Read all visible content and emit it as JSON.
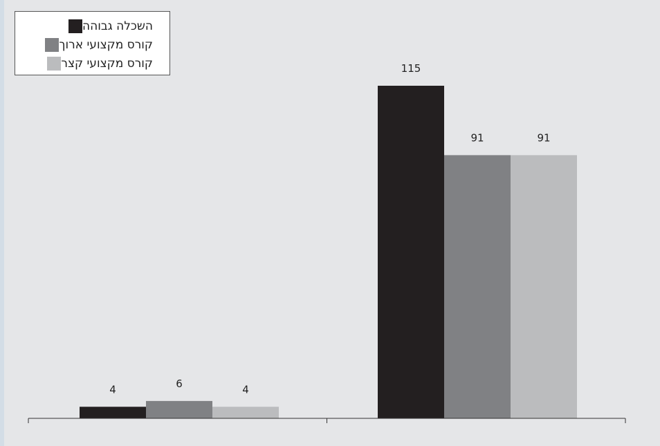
{
  "chart_data": {
    "type": "bar",
    "categories": [
      "",
      ""
    ],
    "series": [
      {
        "name": "השכלה גבוהה",
        "values": [
          4,
          115
        ],
        "color": "#231f20"
      },
      {
        "name": "קורס מקצועי ארוך",
        "values": [
          6,
          91
        ],
        "color": "#808184"
      },
      {
        "name": "קורס מקצועי קצר",
        "values": [
          4,
          91
        ],
        "color": "#bbbcbe"
      }
    ],
    "data_labels": [
      [
        "4",
        "115"
      ],
      [
        "6",
        "91"
      ],
      [
        "4",
        "91"
      ]
    ],
    "title": "",
    "xlabel": "",
    "ylabel": "",
    "ylim": [
      0,
      115
    ],
    "grid": false,
    "legend_position": "top-left"
  }
}
